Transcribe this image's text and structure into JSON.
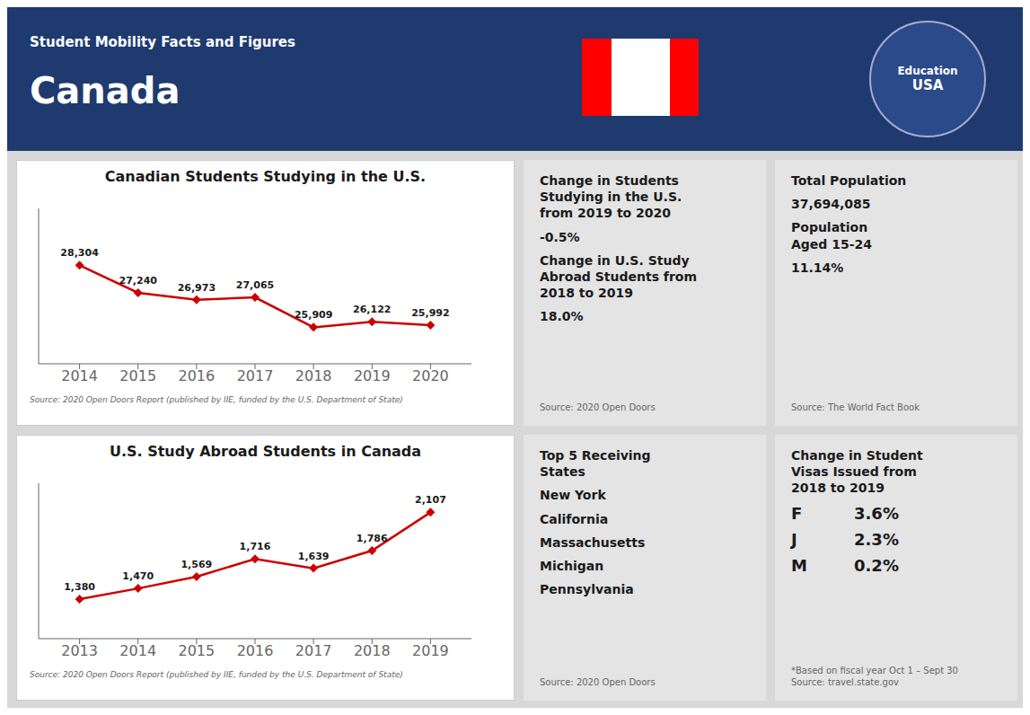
{
  "title": "Canada",
  "subtitle": "Student Mobility Facts and Figures",
  "annotations": [
    [
      "Education",
      "USA"
    ],
    [
      "Change in Students\nStudying in the U.S.\nfrom 2019 to 2020",
      "-0.5%",
      "Change in U.S. Study\nAbroad Students from\n2018 to 2019",
      "18.0%",
      "Source: 2020 Open Doors"
    ],
    [
      "Total Population",
      "37,694,085",
      "Population\nAged 15-24",
      "11.14%",
      "Source: The World Fact Book"
    ],
    [
      "Top 5 Receiving\nStates",
      "New York",
      "California",
      "Massachusetts",
      "Michigan",
      "Pennsylvania",
      "Source: 2020 Open Doors"
    ],
    [
      "Change in Student\nVisas Issued from\n2018 to 2019",
      [
        "F",
        "3.6%"
      ],
      [
        "J",
        "2.3%"
      ],
      [
        "M",
        "0.2%"
      ],
      "*Based on fiscal year Oct 1 – Sept 30\nSource: travel.state.gov"
    ]
  ],
  "chart_data": [
    {
      "type": "line",
      "title": "Canadian Students Studying in the U.S.",
      "x": [
        2014,
        2015,
        2016,
        2017,
        2018,
        2019,
        2020
      ],
      "values": [
        28304,
        27240,
        26973,
        27065,
        25909,
        26122,
        25992
      ],
      "value_labels": [
        "28,304",
        "27,240",
        "26,973",
        "27,065",
        "25,909",
        "26,122",
        "25,992"
      ],
      "color": "#cc0000",
      "marker": "diamond",
      "xlim": [
        2013.3,
        2020.7
      ],
      "xticks": [
        2014,
        2015,
        2016,
        2017,
        2018,
        2019,
        2020
      ],
      "ylim": [
        24500,
        30500
      ],
      "tick_labels": "x",
      "grid": false,
      "data_labels": true,
      "annotations": [
        "Source: 2020 Open Doors Report (published by IIE, funded by the U.S. Department of State)"
      ]
    },
    {
      "type": "line",
      "title": "U.S. Study Abroad Students in Canada",
      "x": [
        2013,
        2014,
        2015,
        2016,
        2017,
        2018,
        2019
      ],
      "values": [
        1380,
        1470,
        1569,
        1716,
        1639,
        1786,
        2107
      ],
      "value_labels": [
        "1,380",
        "1,470",
        "1,569",
        "1,716",
        "1,639",
        "1,786",
        "2,107"
      ],
      "color": "#cc0000",
      "marker": "diamond",
      "xlim": [
        2012.3,
        2019.7
      ],
      "xticks": [
        2013,
        2014,
        2015,
        2016,
        2017,
        2018,
        2019
      ],
      "ylim": [
        1050,
        2350
      ],
      "tick_labels": "x",
      "grid": false,
      "data_labels": true,
      "annotations": [
        "Source: 2020 Open Doors Report (published by IIE, funded by the U.S. Department of State)"
      ]
    }
  ]
}
